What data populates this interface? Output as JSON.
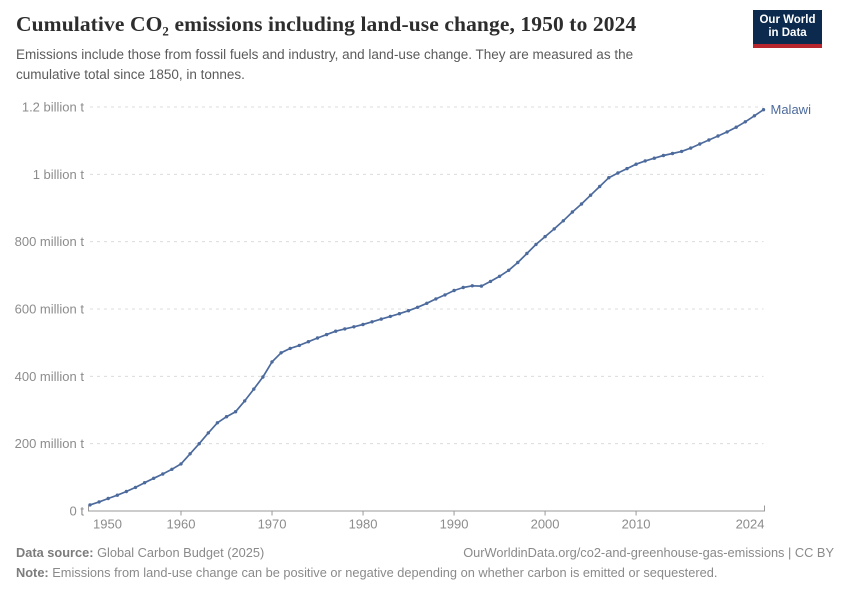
{
  "header": {
    "title": "Cumulative CO₂ emissions including land-use change, 1950 to 2024",
    "subtitle": "Emissions include those from fossil fuels and industry, and land-use change. They are measured as the cumulative total since 1850, in tonnes.",
    "logo": {
      "line1": "Our World",
      "line2": "in Data"
    }
  },
  "colors": {
    "series": "#4C6A9C",
    "grid": "#dcdcdc",
    "axis": "#999999",
    "axis_text": "#8c8c8c",
    "logo_bg": "#0b2a4e",
    "logo_red": "#b8252d"
  },
  "chart_data": {
    "type": "line",
    "title": "Cumulative CO₂ emissions including land-use change, 1950 to 2024",
    "entity": "Malawi",
    "values_unit": "million tonnes",
    "xlim": [
      1950,
      2024
    ],
    "ylim": [
      0,
      1200
    ],
    "grid": "dashed horizontal gridlines",
    "legend": "end-of-line entity label",
    "yticks": [
      {
        "value": 0,
        "label": "0 t"
      },
      {
        "value": 200,
        "label": "200 million t"
      },
      {
        "value": 400,
        "label": "400 million t"
      },
      {
        "value": 600,
        "label": "600 million t"
      },
      {
        "value": 800,
        "label": "800 million t"
      },
      {
        "value": 1000,
        "label": "1 billion t"
      },
      {
        "value": 1200,
        "label": "1.2 billion t"
      }
    ],
    "xticks": [
      {
        "value": 1950,
        "label": "1950"
      },
      {
        "value": 1960,
        "label": "1960"
      },
      {
        "value": 1970,
        "label": "1970"
      },
      {
        "value": 1980,
        "label": "1980"
      },
      {
        "value": 1990,
        "label": "1990"
      },
      {
        "value": 2000,
        "label": "2000"
      },
      {
        "value": 2010,
        "label": "2010"
      },
      {
        "value": 2024,
        "label": "2024"
      }
    ],
    "x": [
      1950,
      1951,
      1952,
      1953,
      1954,
      1955,
      1956,
      1957,
      1958,
      1959,
      1960,
      1961,
      1962,
      1963,
      1964,
      1965,
      1966,
      1967,
      1968,
      1969,
      1970,
      1971,
      1972,
      1973,
      1974,
      1975,
      1976,
      1977,
      1978,
      1979,
      1980,
      1981,
      1982,
      1983,
      1984,
      1985,
      1986,
      1987,
      1988,
      1989,
      1990,
      1991,
      1992,
      1993,
      1994,
      1995,
      1996,
      1997,
      1998,
      1999,
      2000,
      2001,
      2002,
      2003,
      2004,
      2005,
      2006,
      2007,
      2008,
      2009,
      2010,
      2011,
      2012,
      2013,
      2014,
      2015,
      2016,
      2017,
      2018,
      2019,
      2020,
      2021,
      2022,
      2023,
      2024
    ],
    "series": [
      {
        "name": "Malawi",
        "values": [
          18,
          27,
          37,
          47,
          58,
          70,
          84,
          97,
          110,
          124,
          140,
          170,
          200,
          232,
          262,
          280,
          295,
          327,
          362,
          398,
          443,
          470,
          483,
          492,
          503,
          514,
          524,
          534,
          541,
          547,
          554,
          562,
          570,
          578,
          586,
          595,
          605,
          617,
          630,
          642,
          655,
          664,
          669,
          668,
          682,
          697,
          715,
          738,
          765,
          792,
          815,
          838,
          862,
          888,
          912,
          938,
          964,
          990,
          1004,
          1017,
          1030,
          1040,
          1048,
          1056,
          1062,
          1068,
          1078,
          1090,
          1102,
          1114,
          1126,
          1140,
          1156,
          1174,
          1192
        ]
      }
    ]
  },
  "footer": {
    "source_label": "Data source:",
    "source_text": " Global Carbon Budget (2025)",
    "link": "OurWorldinData.org/co2-and-greenhouse-gas-emissions | CC BY",
    "note_label": "Note:",
    "note_text": " Emissions from land-use change can be positive or negative depending on whether carbon is emitted or sequestered."
  }
}
